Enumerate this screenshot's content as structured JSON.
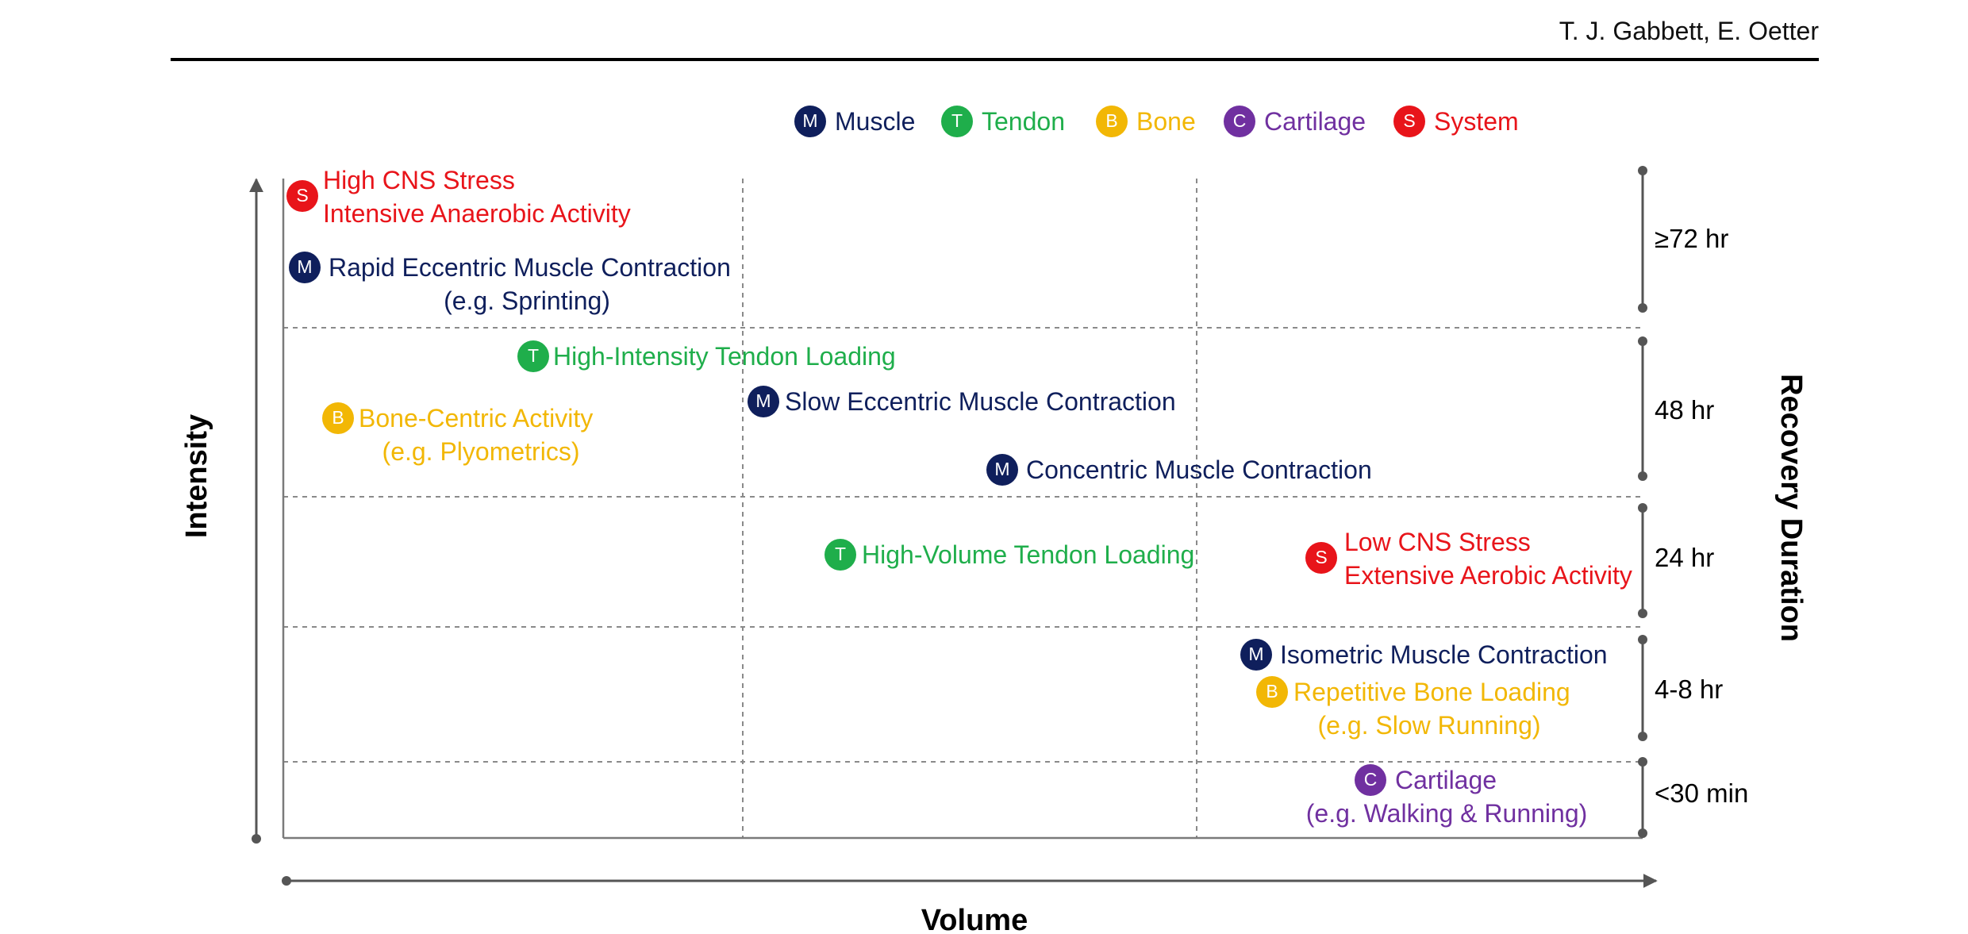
{
  "header": {
    "authors": "T. J. Gabbett, E. Oetter"
  },
  "legend": [
    {
      "letter": "M",
      "label": "Muscle",
      "color": "#0f1f5c"
    },
    {
      "letter": "T",
      "label": "Tendon",
      "color": "#1fae4b"
    },
    {
      "letter": "B",
      "label": "Bone",
      "color": "#f2b705"
    },
    {
      "letter": "C",
      "label": "Cartilage",
      "color": "#7030a0"
    },
    {
      "letter": "S",
      "label": "System",
      "color": "#e8141a"
    }
  ],
  "axes": {
    "y_label": "Intensity",
    "x_label": "Volume",
    "right_label": "Recovery Duration"
  },
  "recovery_bands": [
    {
      "label": "≥72 hr"
    },
    {
      "label": "48 hr"
    },
    {
      "label": "24 hr"
    },
    {
      "label": "4-8 hr"
    },
    {
      "label": "<30 min"
    }
  ],
  "items": [
    {
      "category": "S",
      "line1": "High CNS Stress",
      "line2": "Intensive Anaerobic Activity"
    },
    {
      "category": "M",
      "line1": "Rapid Eccentric Muscle Contraction",
      "line2": "(e.g. Sprinting)"
    },
    {
      "category": "T",
      "line1": "High-Intensity Tendon Loading",
      "line2": ""
    },
    {
      "category": "B",
      "line1": "Bone-Centric Activity",
      "line2": "(e.g. Plyometrics)"
    },
    {
      "category": "M",
      "line1": "Slow Eccentric Muscle Contraction",
      "line2": ""
    },
    {
      "category": "M",
      "line1": "Concentric Muscle Contraction",
      "line2": ""
    },
    {
      "category": "T",
      "line1": "High-Volume Tendon Loading",
      "line2": ""
    },
    {
      "category": "S",
      "line1": "Low CNS Stress",
      "line2": "Extensive Aerobic Activity"
    },
    {
      "category": "M",
      "line1": "Isometric Muscle Contraction",
      "line2": ""
    },
    {
      "category": "B",
      "line1": "Repetitive Bone Loading",
      "line2": "(e.g. Slow Running)"
    },
    {
      "category": "C",
      "line1": "Cartilage",
      "line2": "(e.g. Walking & Running)"
    }
  ]
}
